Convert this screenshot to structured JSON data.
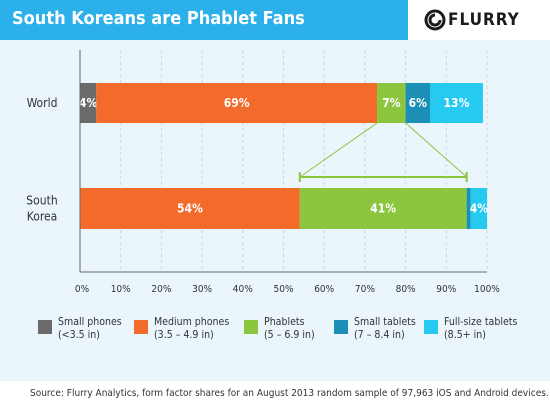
{
  "header": {
    "title": "South Koreans are Phablet Fans",
    "logo_text": "FLURRY",
    "bg_color": "#2cb0ea"
  },
  "chart_data": {
    "type": "bar",
    "orientation": "horizontal",
    "stacked": true,
    "categories": [
      "World",
      "South Korea"
    ],
    "category_lines": [
      [
        "World"
      ],
      [
        "South",
        "Korea"
      ]
    ],
    "series": [
      {
        "name": "Small phones",
        "sublabel": "(<3.5 in)",
        "color": "#6b6b6b",
        "values": [
          4,
          0
        ],
        "labels": [
          "4%",
          ""
        ]
      },
      {
        "name": "Medium phones",
        "sublabel": "(3.5 – 4.9 in)",
        "color": "#f26b2a",
        "values": [
          69,
          54
        ],
        "labels": [
          "69%",
          "54%"
        ]
      },
      {
        "name": "Phablets",
        "sublabel": "(5 – 6.9 in)",
        "color": "#8cc63f",
        "values": [
          7,
          41
        ],
        "labels": [
          "7%",
          "41%"
        ]
      },
      {
        "name": "Small tablets",
        "sublabel": "(7 – 8.4 in)",
        "color": "#1b8fb5",
        "values": [
          6,
          1
        ],
        "labels": [
          "6%",
          ""
        ]
      },
      {
        "name": "Full-size tablets",
        "sublabel": "(8.5+ in)",
        "color": "#26c9ef",
        "values": [
          13,
          4
        ],
        "labels": [
          "13%",
          "4%"
        ]
      }
    ],
    "xlim": [
      0,
      100
    ],
    "xticks": [
      "0%",
      "10%",
      "20%",
      "30%",
      "40%",
      "50%",
      "60%",
      "70%",
      "80%",
      "90%",
      "100%"
    ],
    "grid": true,
    "legend_position": "bottom",
    "annotation": {
      "type": "zoom-bracket",
      "series": "Phablets"
    }
  },
  "source": "Source: Flurry Analytics, form factor shares for an August 2013 random sample of 97,963 iOS and Android devices."
}
